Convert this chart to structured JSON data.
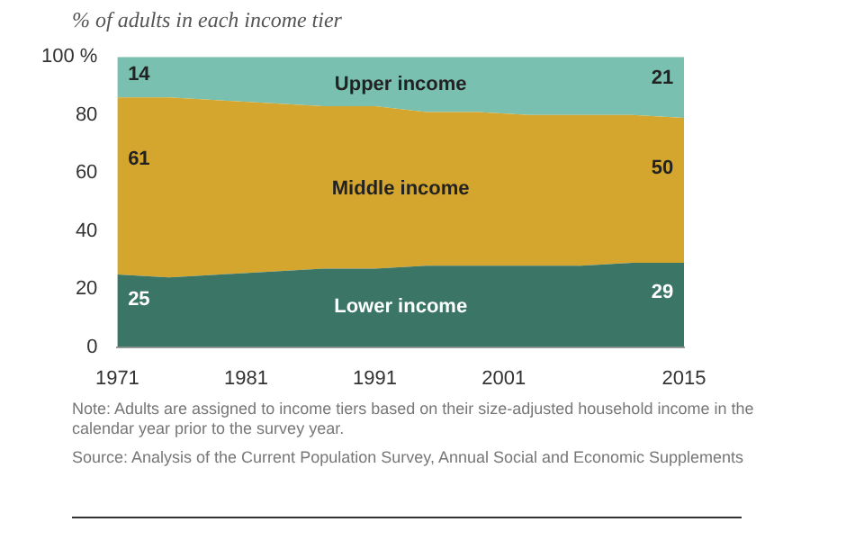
{
  "chart_data": {
    "type": "area",
    "stacked": true,
    "subtitle": "% of adults in each income tier",
    "x": [
      1971,
      1975,
      1979,
      1983,
      1987,
      1991,
      1995,
      1999,
      2003,
      2007,
      2011,
      2015
    ],
    "series": [
      {
        "name": "Lower income",
        "color": "#3a7566",
        "values": [
          25,
          24,
          25,
          26,
          27,
          27,
          28,
          28,
          28,
          28,
          29,
          29
        ],
        "value_labels": [
          "25",
          null,
          null,
          null,
          null,
          null,
          null,
          null,
          null,
          null,
          null,
          "29"
        ]
      },
      {
        "name": "Middle income",
        "color": "#d4a62e",
        "values": [
          61,
          62,
          60,
          58,
          56,
          56,
          53,
          53,
          52,
          52,
          51,
          50
        ],
        "value_labels": [
          "61",
          null,
          null,
          null,
          null,
          null,
          null,
          null,
          null,
          null,
          null,
          "50"
        ]
      },
      {
        "name": "Upper income",
        "color": "#79c0b0",
        "values": [
          14,
          14,
          15,
          16,
          17,
          17,
          19,
          19,
          20,
          20,
          20,
          21
        ],
        "value_labels": [
          "14",
          null,
          null,
          null,
          null,
          null,
          null,
          null,
          null,
          null,
          null,
          "21"
        ]
      }
    ],
    "xlim": [
      1971,
      2015
    ],
    "xticks": [
      1971,
      1981,
      1991,
      2001,
      2015
    ],
    "ylim": [
      0,
      100
    ],
    "yticks": [
      0,
      20,
      40,
      60,
      80,
      {
        "value": 100,
        "label": "100 %"
      }
    ],
    "grid": false,
    "legend": false,
    "annotations": [
      "Note: Adults are assigned to income tiers based on their size-adjusted household income in the calendar year prior to the survey year.",
      "Source: Analysis of the Current Population Survey, Annual Social and Economic Supplements"
    ]
  }
}
